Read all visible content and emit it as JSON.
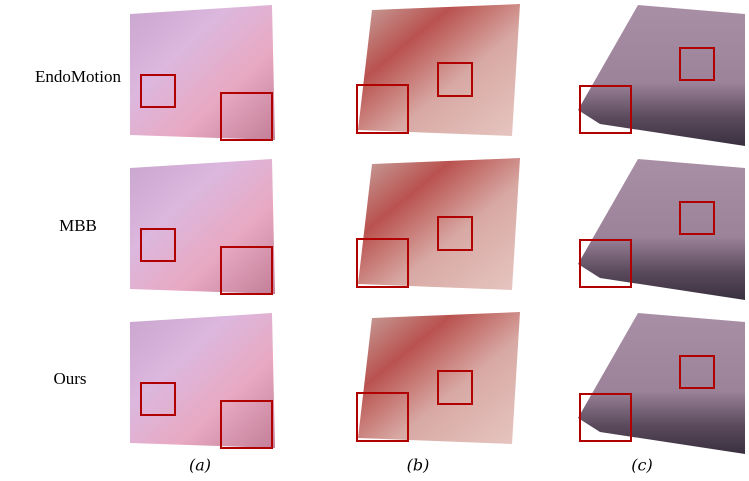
{
  "rows": [
    {
      "label": "EndoMotion"
    },
    {
      "label": "MBB"
    },
    {
      "label": "Ours"
    }
  ],
  "columns": [
    {
      "label": "(a)"
    },
    {
      "label": "(b)"
    },
    {
      "label": "(c)"
    }
  ]
}
